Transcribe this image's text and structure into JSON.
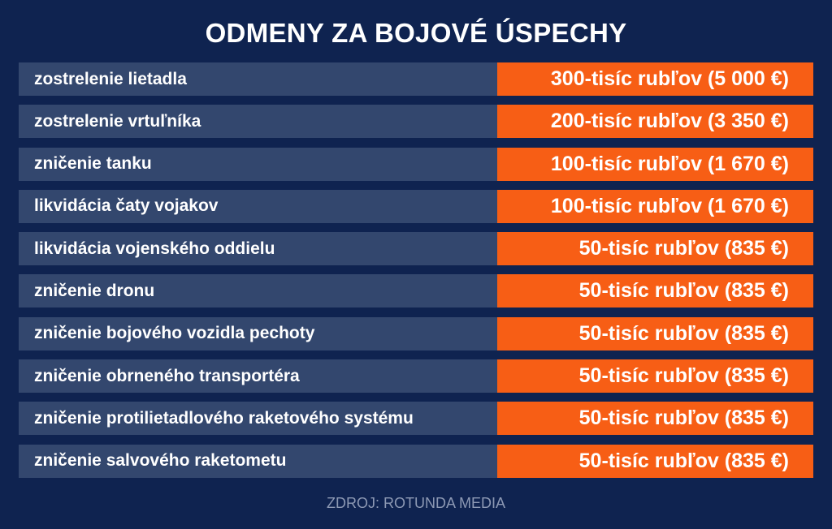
{
  "title": "ODMENY ZA BOJOVÉ ÚSPECHY",
  "rows": [
    {
      "label": "zostrelenie lietadla",
      "value": "300-tisíc rubľov (5 000 €)"
    },
    {
      "label": "zostrelenie vrtuľníka",
      "value": "200-tisíc rubľov (3 350 €)"
    },
    {
      "label": "zničenie tanku",
      "value": "100-tisíc rubľov (1 670 €)"
    },
    {
      "label": "likvidácia čaty vojakov",
      "value": "100-tisíc rubľov (1 670 €)"
    },
    {
      "label": "likvidácia vojenského oddielu",
      "value": "50-tisíc rubľov (835 €)"
    },
    {
      "label": "zničenie dronu",
      "value": "50-tisíc rubľov (835 €)"
    },
    {
      "label": "zničenie bojového vozidla pechoty",
      "value": "50-tisíc rubľov (835 €)"
    },
    {
      "label": "zničenie obrneného transportéra",
      "value": "50-tisíc rubľov (835 €)"
    },
    {
      "label": "zničenie protilietadlového raketového systému",
      "value": "50-tisíc rubľov (835 €)"
    },
    {
      "label": "zničenie salvového raketometu",
      "value": "50-tisíc rubľov (835 €)"
    }
  ],
  "source": "ZDROJ: ROTUNDA MEDIA",
  "colors": {
    "background": "#0f2350",
    "label_cell": "#33476e",
    "value_cell": "#f75e15",
    "source_text": "#8d99b4"
  }
}
